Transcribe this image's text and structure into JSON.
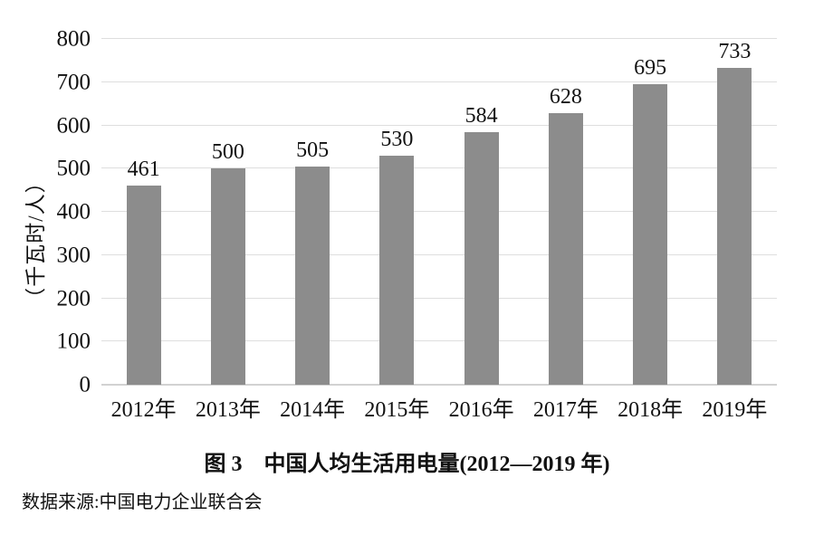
{
  "figure": {
    "caption": "图 3　中国人均生活用电量(2012—2019 年)",
    "source": "数据来源:中国电力企业联合会"
  },
  "chart_data": {
    "type": "bar",
    "categories": [
      "2012年",
      "2013年",
      "2014年",
      "2015年",
      "2016年",
      "2017年",
      "2018年",
      "2019年"
    ],
    "values": [
      461,
      500,
      505,
      530,
      584,
      628,
      695,
      733
    ],
    "title": "图 3　中国人均生活用电量(2012—2019 年)",
    "xlabel": "",
    "ylabel": "（千瓦时/人）",
    "ylim": [
      0,
      800
    ],
    "yticks": [
      0,
      100,
      200,
      300,
      400,
      500,
      600,
      700,
      800
    ],
    "grid": true,
    "legend_position": "none",
    "bar_color": "#8C8C8C",
    "grid_color": "#DEDEDE",
    "axis_line_color": "#D2D2D2",
    "text_color": "#111111",
    "background_color": "#FFFFFF",
    "source": "数据来源:中国电力企业联合会"
  }
}
